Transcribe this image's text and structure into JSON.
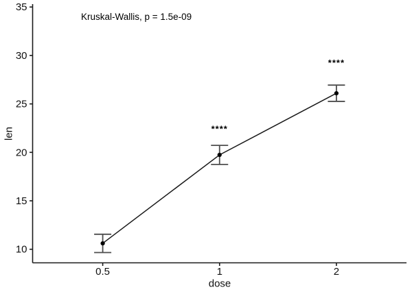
{
  "chart_data": {
    "type": "line",
    "title": "",
    "xlabel": "dose",
    "ylabel": "len",
    "annotation": "Kruskal-Wallis, p = 1.5e-09",
    "categories": [
      "0.5",
      "1",
      "2"
    ],
    "yticks": [
      10,
      15,
      20,
      25,
      30,
      35
    ],
    "ylim": [
      8.6,
      35.3
    ],
    "x_expand": 0.6,
    "grid": false,
    "legend": "none",
    "series": [
      {
        "name": "mean_se",
        "means": [
          10.61,
          19.74,
          26.1
        ],
        "lower": [
          9.66,
          18.75,
          25.26
        ],
        "upper": [
          11.55,
          20.72,
          26.94
        ]
      }
    ],
    "significance": [
      {
        "category_index": 1,
        "label": "****",
        "y": 22.4
      },
      {
        "category_index": 2,
        "label": "****",
        "y": 29.2
      }
    ],
    "colors": {
      "background": "#ffffff",
      "axis": "#1a1a1a",
      "line": "#1a1a1a",
      "point": "#000000",
      "errorbar": "#4d4d4d",
      "text": "#111111"
    }
  }
}
